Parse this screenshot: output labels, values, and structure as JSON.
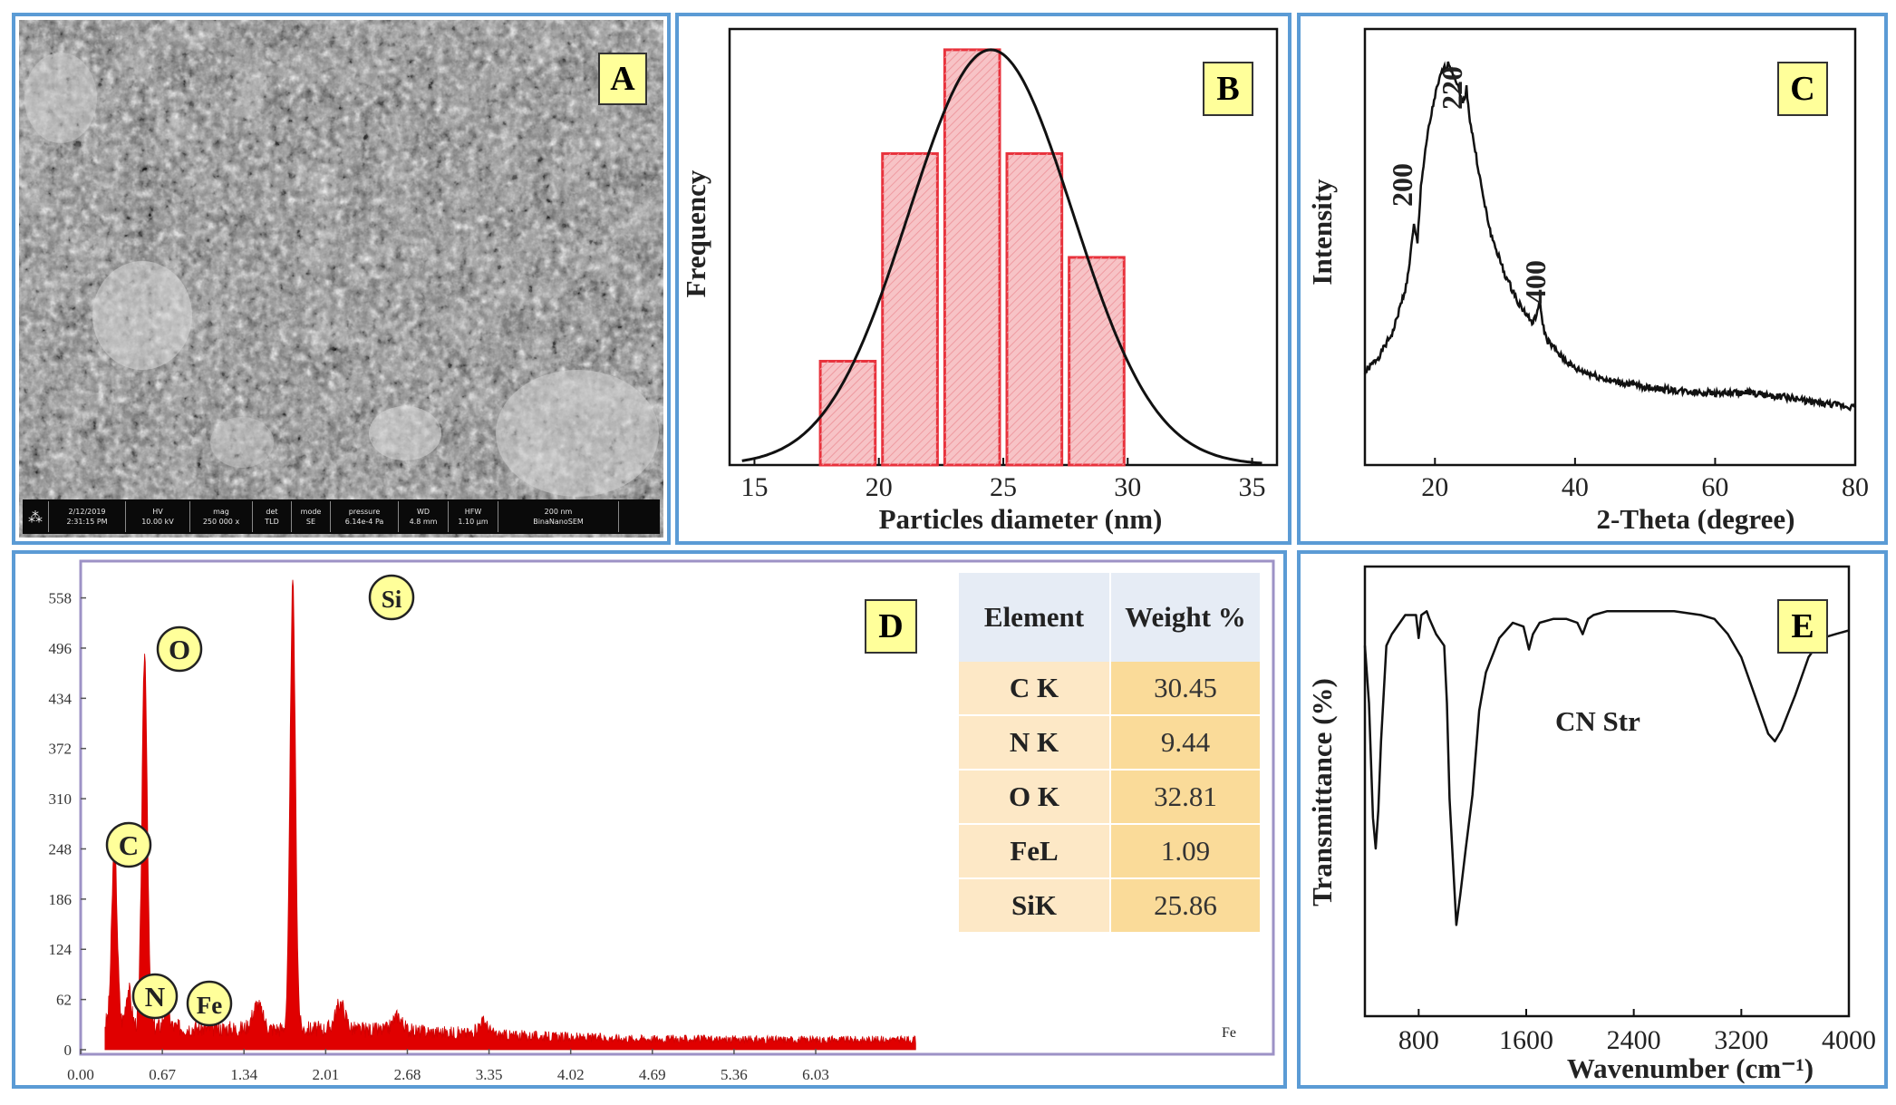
{
  "panels": {
    "A": {
      "label": "A",
      "sem_info": [
        [
          "",
          ""
        ],
        [
          "2/12/2019",
          "2:31:15 PM"
        ],
        [
          "HV",
          "10.00 kV"
        ],
        [
          "mag",
          "250 000 x"
        ],
        [
          "det",
          "TLD"
        ],
        [
          "mode",
          "SE"
        ],
        [
          "pressure",
          "6.14e-4 Pa"
        ],
        [
          "WD",
          "4.8 mm"
        ],
        [
          "HFW",
          "1.10 µm"
        ],
        [
          "200 nm",
          "BinaNanoSEM"
        ]
      ]
    },
    "B": {
      "label": "B"
    },
    "C": {
      "label": "C"
    },
    "D": {
      "label": "D"
    },
    "E": {
      "label": "E"
    }
  },
  "colors": {
    "panel_border": "#5b9bd5",
    "histogram": "#e8323c",
    "eds": "#e00000",
    "label_bg": "#ffff9a",
    "table_header": "#e6ecf5",
    "table_element": "#fde8c6",
    "table_weight": "#fadb99"
  },
  "chart_data": [
    {
      "panel": "B",
      "type": "bar",
      "title": "",
      "xlabel": "Particles diameter (nm)",
      "ylabel": "Frequency",
      "xlim": [
        14,
        36
      ],
      "xticks": [
        15,
        20,
        25,
        30,
        35
      ],
      "bins": [
        [
          17.5,
          20
        ],
        [
          20,
          22.5
        ],
        [
          22.5,
          25
        ],
        [
          25,
          27.5
        ],
        [
          27.5,
          30
        ]
      ],
      "values": [
        1,
        3,
        4,
        3,
        2
      ],
      "fit": {
        "type": "gaussian",
        "mean": 24.5,
        "sd": 3.3,
        "peak": 4
      }
    },
    {
      "panel": "C",
      "type": "line",
      "title": "",
      "xlabel": "2-Theta (degree)",
      "ylabel": "Intensity",
      "xlim": [
        10,
        80
      ],
      "xticks": [
        20,
        40,
        60,
        80
      ],
      "peak_labels": [
        {
          "text": "200",
          "x": 17
        },
        {
          "text": "220",
          "x": 24
        },
        {
          "text": "400",
          "x": 35
        }
      ],
      "x": [
        10,
        12,
        14,
        16,
        17,
        17.5,
        18,
        19,
        20,
        21,
        22,
        23,
        24,
        24.5,
        25,
        26,
        27,
        28,
        30,
        32,
        34,
        35,
        35.5,
        36,
        38,
        40,
        45,
        50,
        55,
        60,
        65,
        70,
        75,
        80
      ],
      "y": [
        20,
        24,
        30,
        42,
        56,
        52,
        66,
        79,
        88,
        94,
        96,
        92,
        86,
        90,
        82,
        72,
        62,
        54,
        44,
        37,
        32,
        37,
        31,
        28,
        24,
        21,
        18,
        16.5,
        15.5,
        15,
        15,
        14,
        12.5,
        11.5
      ]
    },
    {
      "panel": "D",
      "type": "area",
      "title": "",
      "xlabel": "",
      "ylabel": "",
      "xlim": [
        0,
        6.9
      ],
      "ylim": [
        0,
        590
      ],
      "xticks": [
        "0.00",
        "0.67",
        "1.34",
        "2.01",
        "2.68",
        "3.35",
        "4.02",
        "4.69",
        "5.36",
        "6.03"
      ],
      "yticks": [
        "0",
        "62",
        "124",
        "186",
        "248",
        "310",
        "372",
        "434",
        "496",
        "558"
      ],
      "peaks": [
        {
          "label": "C",
          "x": 0.277,
          "y": 220
        },
        {
          "label": "N",
          "x": 0.392,
          "y": 45
        },
        {
          "label": "O",
          "x": 0.525,
          "y": 460
        },
        {
          "label": "Fe",
          "x": 0.705,
          "y": 25
        },
        {
          "label": "Si",
          "x": 1.74,
          "y": 550
        }
      ],
      "minor_peaks": [
        {
          "x": 1.45,
          "y": 30
        },
        {
          "x": 2.13,
          "y": 32
        },
        {
          "x": 2.6,
          "y": 18
        },
        {
          "x": 3.3,
          "y": 16
        }
      ],
      "end_label": "Fe",
      "table": {
        "headers": [
          "Element",
          "Weight %"
        ],
        "rows": [
          [
            "C K",
            "30.45"
          ],
          [
            "N K",
            "9.44"
          ],
          [
            "O K",
            "32.81"
          ],
          [
            "FeL",
            "1.09"
          ],
          [
            "SiK",
            "25.86"
          ]
        ]
      }
    },
    {
      "panel": "E",
      "type": "line",
      "title": "",
      "xlabel": "Wavenumber (cm⁻¹)",
      "ylabel": "Transmittance (%)",
      "xlim": [
        400,
        4000
      ],
      "xticks": [
        800,
        1600,
        2400,
        3200,
        4000
      ],
      "annotation": "CN Str",
      "x": [
        400,
        430,
        460,
        480,
        500,
        520,
        560,
        600,
        700,
        780,
        800,
        820,
        860,
        880,
        930,
        990,
        1010,
        1030,
        1080,
        1110,
        1150,
        1200,
        1250,
        1300,
        1400,
        1500,
        1580,
        1620,
        1650,
        1700,
        1800,
        1900,
        1980,
        2020,
        2060,
        2100,
        2200,
        2400,
        2700,
        2900,
        3000,
        3100,
        3200,
        3300,
        3400,
        3450,
        3500,
        3600,
        3700,
        3800,
        3900,
        4000
      ],
      "y": [
        85,
        70,
        40,
        32,
        42,
        60,
        85,
        88,
        93,
        93,
        87,
        93,
        94,
        92,
        88,
        85,
        70,
        45,
        12,
        20,
        32,
        46,
        68,
        78,
        87,
        91,
        90,
        84,
        88,
        91,
        92,
        92,
        91,
        88,
        92,
        93,
        94,
        94,
        94,
        93,
        92,
        88,
        82,
        72,
        62,
        60,
        63,
        72,
        82,
        87,
        88,
        89
      ]
    }
  ]
}
